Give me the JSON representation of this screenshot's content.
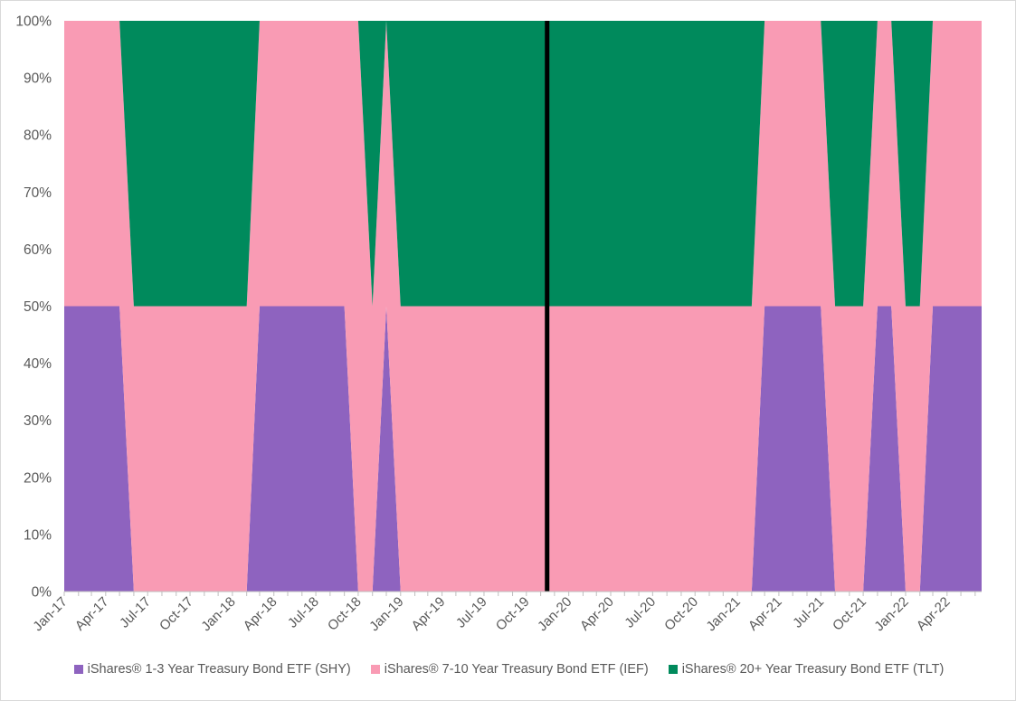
{
  "chart_data": {
    "type": "area",
    "stacked": "percent",
    "title": "",
    "xlabel": "",
    "ylabel": "",
    "ylim": [
      0,
      100
    ],
    "y_ticks": [
      "0%",
      "10%",
      "20%",
      "30%",
      "40%",
      "50%",
      "60%",
      "70%",
      "80%",
      "90%",
      "100%"
    ],
    "x_tick_labels": [
      "Jan-17",
      "Apr-17",
      "Jul-17",
      "Oct-17",
      "Jan-18",
      "Apr-18",
      "Jul-18",
      "Oct-18",
      "Jan-19",
      "Apr-19",
      "Jul-19",
      "Oct-19",
      "Jan-20",
      "Apr-20",
      "Jul-20",
      "Oct-20",
      "Jan-21",
      "Apr-21",
      "Jul-21",
      "Oct-21",
      "Jan-22",
      "Apr-22"
    ],
    "x": [
      "2017-01",
      "2017-02",
      "2017-03",
      "2017-04",
      "2017-05",
      "2017-06",
      "2017-07",
      "2017-08",
      "2017-09",
      "2017-10",
      "2017-11",
      "2017-12",
      "2018-01",
      "2018-02",
      "2018-03",
      "2018-04",
      "2018-05",
      "2018-06",
      "2018-07",
      "2018-08",
      "2018-09",
      "2018-10",
      "2018-11",
      "2018-12",
      "2019-01",
      "2019-02",
      "2019-03",
      "2019-04",
      "2019-05",
      "2019-06",
      "2019-07",
      "2019-08",
      "2019-09",
      "2019-10",
      "2019-11",
      "2019-12",
      "2020-01",
      "2020-02",
      "2020-03",
      "2020-04",
      "2020-05",
      "2020-06",
      "2020-07",
      "2020-08",
      "2020-09",
      "2020-10",
      "2020-11",
      "2020-12",
      "2021-01",
      "2021-02",
      "2021-03",
      "2021-04",
      "2021-05",
      "2021-06",
      "2021-07",
      "2021-08",
      "2021-09",
      "2021-10",
      "2021-11",
      "2021-12",
      "2022-01",
      "2022-02",
      "2022-03",
      "2022-04",
      "2022-05",
      "2022-06"
    ],
    "series": [
      {
        "name": "iShares® 1-3 Year Treasury Bond ETF (SHY)",
        "color": "#8e63bf",
        "values": [
          50,
          50,
          50,
          50,
          50,
          0,
          0,
          0,
          0,
          0,
          0,
          0,
          0,
          0,
          50,
          50,
          50,
          50,
          50,
          50,
          50,
          0,
          0,
          50,
          0,
          0,
          0,
          0,
          0,
          0,
          0,
          0,
          0,
          0,
          0,
          0,
          0,
          0,
          0,
          0,
          0,
          0,
          0,
          0,
          0,
          0,
          0,
          0,
          0,
          0,
          50,
          50,
          50,
          50,
          50,
          0,
          0,
          0,
          50,
          50,
          0,
          0,
          50,
          50,
          50,
          50
        ]
      },
      {
        "name": "iShares® 7-10 Year Treasury Bond ETF (IEF)",
        "color": "#f99bb4",
        "values": [
          50,
          50,
          50,
          50,
          50,
          50,
          50,
          50,
          50,
          50,
          50,
          50,
          50,
          50,
          50,
          50,
          50,
          50,
          50,
          50,
          50,
          100,
          50,
          50,
          50,
          50,
          50,
          50,
          50,
          50,
          50,
          50,
          50,
          50,
          50,
          50,
          50,
          50,
          50,
          50,
          50,
          50,
          50,
          50,
          50,
          50,
          50,
          50,
          50,
          50,
          50,
          50,
          50,
          50,
          50,
          50,
          50,
          50,
          50,
          50,
          50,
          50,
          50,
          50,
          50,
          50
        ]
      },
      {
        "name": "iShares® 20+ Year Treasury Bond ETF (TLT)",
        "color": "#008a5c",
        "values": [
          0,
          0,
          0,
          0,
          0,
          50,
          50,
          50,
          50,
          50,
          50,
          50,
          50,
          50,
          0,
          0,
          0,
          0,
          0,
          0,
          0,
          0,
          50,
          0,
          50,
          50,
          50,
          50,
          50,
          50,
          50,
          50,
          50,
          50,
          50,
          50,
          50,
          50,
          50,
          50,
          50,
          50,
          50,
          50,
          50,
          50,
          50,
          50,
          50,
          50,
          0,
          0,
          0,
          0,
          0,
          50,
          50,
          50,
          0,
          0,
          50,
          50,
          0,
          0,
          0,
          0
        ]
      }
    ],
    "annotations": [
      {
        "type": "vertical-line",
        "x": "2019-11-15",
        "color": "#000000"
      }
    ],
    "grid": false,
    "legend_position": "bottom"
  }
}
